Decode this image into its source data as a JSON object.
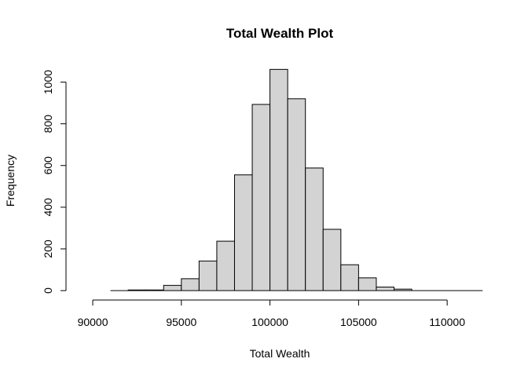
{
  "chart_data": {
    "type": "bar",
    "title": "Total Wealth Plot",
    "xlabel": "Total Wealth",
    "ylabel": "Frequency",
    "bar_color": "#d3d3d3",
    "outline_color": "#000000",
    "bins": [
      {
        "start": 91000,
        "end": 92000,
        "count": 0
      },
      {
        "start": 92000,
        "end": 93000,
        "count": 3
      },
      {
        "start": 93000,
        "end": 94000,
        "count": 3
      },
      {
        "start": 94000,
        "end": 95000,
        "count": 25
      },
      {
        "start": 95000,
        "end": 96000,
        "count": 57
      },
      {
        "start": 96000,
        "end": 97000,
        "count": 142
      },
      {
        "start": 97000,
        "end": 98000,
        "count": 237
      },
      {
        "start": 98000,
        "end": 99000,
        "count": 555
      },
      {
        "start": 99000,
        "end": 100000,
        "count": 893
      },
      {
        "start": 100000,
        "end": 101000,
        "count": 1061
      },
      {
        "start": 101000,
        "end": 102000,
        "count": 920
      },
      {
        "start": 102000,
        "end": 103000,
        "count": 588
      },
      {
        "start": 103000,
        "end": 104000,
        "count": 294
      },
      {
        "start": 104000,
        "end": 105000,
        "count": 124
      },
      {
        "start": 105000,
        "end": 106000,
        "count": 61
      },
      {
        "start": 106000,
        "end": 107000,
        "count": 17
      },
      {
        "start": 107000,
        "end": 108000,
        "count": 7
      },
      {
        "start": 108000,
        "end": 109000,
        "count": 0
      },
      {
        "start": 109000,
        "end": 110000,
        "count": 0
      },
      {
        "start": 110000,
        "end": 111000,
        "count": 0
      },
      {
        "start": 111000,
        "end": 112000,
        "count": 0
      }
    ],
    "x_ticks": [
      90000,
      95000,
      100000,
      105000,
      110000
    ],
    "x_tick_labels": [
      "90000",
      "95000",
      "100000",
      "105000",
      "110000"
    ],
    "y_ticks": [
      0,
      200,
      400,
      600,
      800,
      1000
    ],
    "y_tick_labels": [
      "0",
      "200",
      "400",
      "600",
      "800",
      "1000"
    ],
    "xlim": [
      89200,
      111900
    ],
    "ylim": [
      0,
      1100
    ],
    "grid": false
  }
}
